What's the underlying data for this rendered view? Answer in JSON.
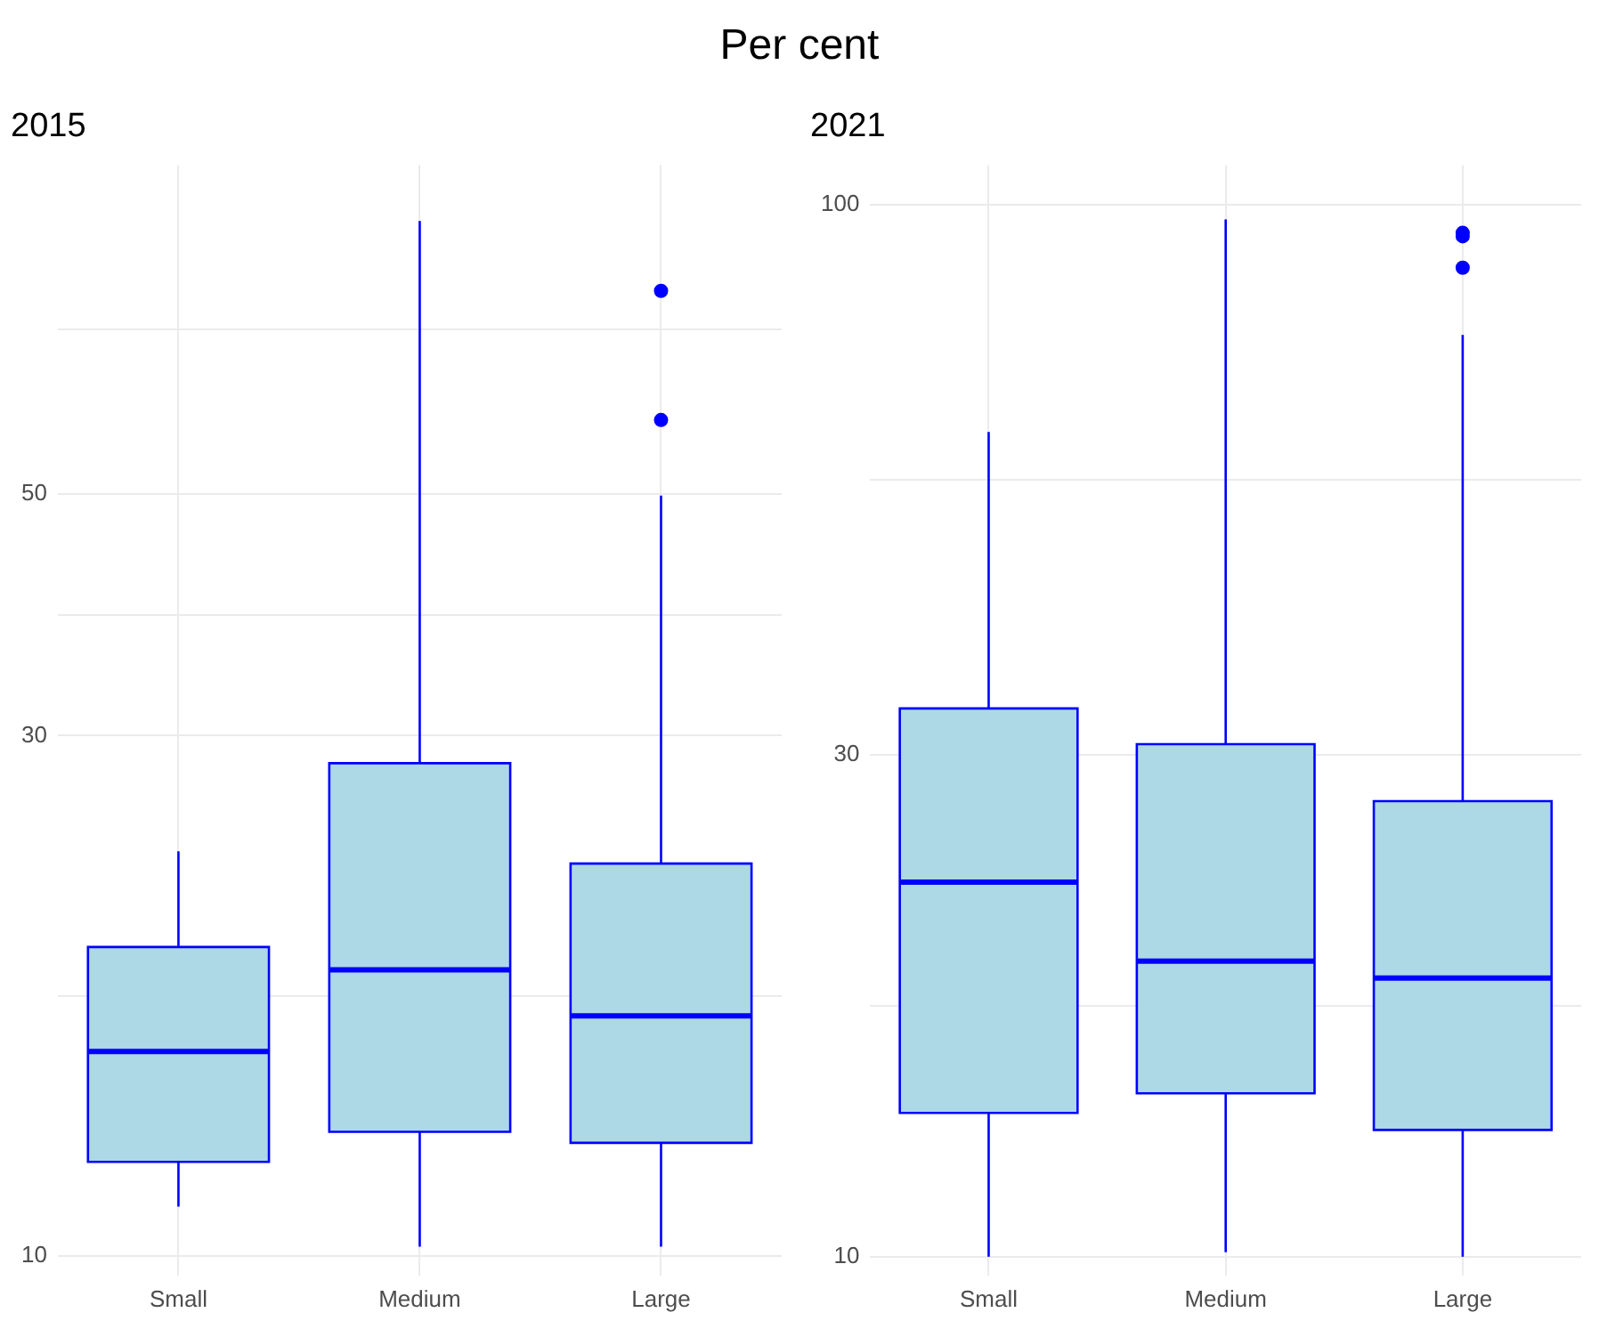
{
  "chart_data": [
    {
      "type": "box",
      "title": "2015",
      "annotations": [
        "Per cent"
      ],
      "categories": [
        "Small",
        "Medium",
        "Large"
      ],
      "log": true,
      "grid": true,
      "ylim": [
        9.6,
        100
      ],
      "yticks": [
        10,
        {
          "value": 17.3,
          "label": null
        },
        30,
        {
          "value": 38.7,
          "label": null
        },
        50,
        {
          "value": 70.7,
          "label": null
        }
      ],
      "series": [
        {
          "color": "#add8e6",
          "boxes": [
            {
              "low": 11.1,
              "q1": 12.2,
              "median": 15.4,
              "q3": 19.2,
              "high": 23.5
            },
            {
              "low": 10.2,
              "q1": 13.0,
              "median": 18.3,
              "q3": 28.3,
              "high": 88.9
            },
            {
              "low": 10.2,
              "q1": 12.7,
              "median": 16.6,
              "q3": 22.9,
              "high": 49.8,
              "outliers": [
                58.4,
                76.7
              ]
            }
          ]
        }
      ]
    },
    {
      "type": "box",
      "title": "2021",
      "categories": [
        "Small",
        "Medium",
        "Large"
      ],
      "log": true,
      "grid": true,
      "ylim": [
        9.6,
        109
      ],
      "yticks": [
        10,
        {
          "value": 17.3,
          "label": null
        },
        30,
        {
          "value": 54.8,
          "label": null
        },
        100
      ],
      "series": [
        {
          "color": "#add8e6",
          "boxes": [
            {
              "low": 10,
              "q1": 13.7,
              "median": 22.7,
              "q3": 33.2,
              "high": 60.8
            },
            {
              "low": 10.1,
              "q1": 14.3,
              "median": 19.1,
              "q3": 30.7,
              "high": 96.8
            },
            {
              "low": 10,
              "q1": 13.2,
              "median": 18.4,
              "q3": 27.1,
              "high": 75.2,
              "outliers": [
                87.1,
                93.3,
                94.0
              ]
            }
          ]
        }
      ]
    }
  ]
}
